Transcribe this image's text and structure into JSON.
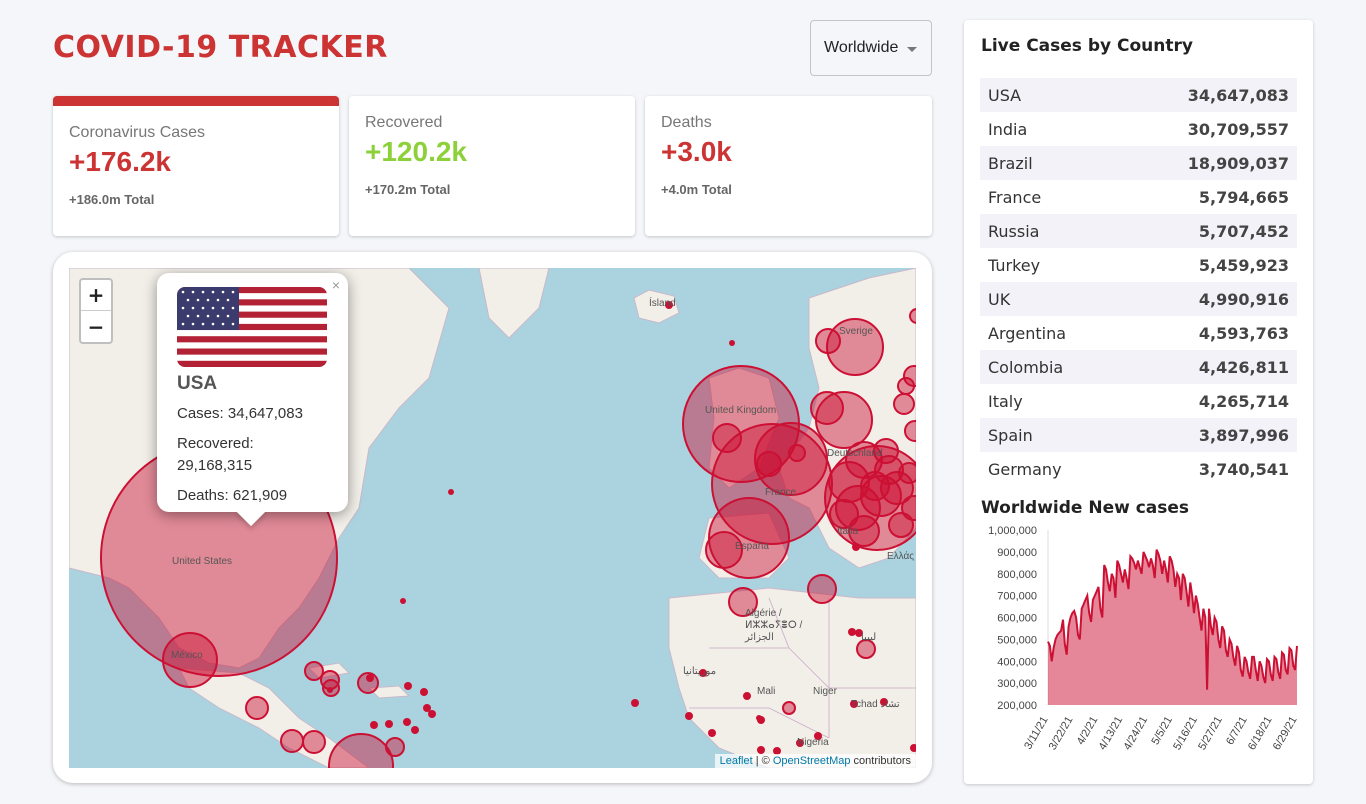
{
  "header": {
    "title": "COVID-19 TRACKER"
  },
  "country_select": {
    "selected": "Worldwide"
  },
  "info_cards": [
    {
      "label": "Coronavirus Cases",
      "value": "+176.2k",
      "total": "+186.0m Total",
      "selected": true
    },
    {
      "label": "Recovered",
      "value": "+120.2k",
      "total": "+170.2m Total",
      "selected": false
    },
    {
      "label": "Deaths",
      "value": "+3.0k",
      "total": "+4.0m Total",
      "selected": false
    }
  ],
  "map": {
    "zoom_in": "+",
    "zoom_out": "−",
    "attribution_leaflet": "Leaflet",
    "attribution_sep": " | © ",
    "attribution_osm": "OpenStreetMap",
    "attribution_rest": " contributors",
    "labels": {
      "iceland": "Ísland",
      "sweden": "Sverige",
      "uk": "United Kingdom",
      "france": "France",
      "spain": "España",
      "italy": "Italia",
      "germany": "Deutschland",
      "us": "United States",
      "mexico": "México",
      "algeria": "Algérie / ⵍⵣⵣⴰⵢⴻⵔ / الجزائر",
      "mauritania": "موريتانيا",
      "mali": "Mali",
      "niger": "Niger",
      "tchad": "Tchad تشاد",
      "nigeria": "Nigeria",
      "libya": "ليبيا",
      "greece": "Ελλάς"
    },
    "popup": {
      "country": "USA",
      "cases": "Cases: 34,647,083",
      "recovered": "Recovered: 29,168,315",
      "deaths": "Deaths: 621,909",
      "close": "×"
    },
    "circle_color": "#cc1034"
  },
  "live_cases": {
    "title": "Live Cases by Country",
    "rows": [
      {
        "country": "USA",
        "cases": "34,647,083"
      },
      {
        "country": "India",
        "cases": "30,709,557"
      },
      {
        "country": "Brazil",
        "cases": "18,909,037"
      },
      {
        "country": "France",
        "cases": "5,794,665"
      },
      {
        "country": "Russia",
        "cases": "5,707,452"
      },
      {
        "country": "Turkey",
        "cases": "5,459,923"
      },
      {
        "country": "UK",
        "cases": "4,990,916"
      },
      {
        "country": "Argentina",
        "cases": "4,593,763"
      },
      {
        "country": "Colombia",
        "cases": "4,426,811"
      },
      {
        "country": "Italy",
        "cases": "4,265,714"
      },
      {
        "country": "Spain",
        "cases": "3,897,996"
      },
      {
        "country": "Germany",
        "cases": "3,740,541"
      }
    ]
  },
  "chart_data": {
    "type": "area",
    "title": "Worldwide New cases",
    "ylim": [
      200000,
      1000000
    ],
    "yticks": [
      "1,000,000",
      "900,000",
      "800,000",
      "700,000",
      "600,000",
      "500,000",
      "400,000",
      "300,000",
      "200,000"
    ],
    "xticks": [
      "3/11/21",
      "3/22/21",
      "4/2/21",
      "4/13/21",
      "4/24/21",
      "5/5/21",
      "5/16/21",
      "5/27/21",
      "6/7/21",
      "6/18/21",
      "6/29/21"
    ],
    "values": [
      490000,
      470000,
      400000,
      460000,
      500000,
      520000,
      530000,
      540000,
      590000,
      480000,
      430000,
      560000,
      600000,
      620000,
      630000,
      600000,
      520000,
      500000,
      640000,
      660000,
      680000,
      700000,
      620000,
      580000,
      680000,
      700000,
      720000,
      740000,
      640000,
      600000,
      840000,
      820000,
      760000,
      720000,
      800000,
      780000,
      690000,
      860000,
      840000,
      800000,
      760000,
      820000,
      780000,
      730000,
      880000,
      870000,
      850000,
      820000,
      860000,
      830000,
      800000,
      900000,
      880000,
      860000,
      830000,
      870000,
      840000,
      780000,
      910000,
      890000,
      860000,
      800000,
      860000,
      820000,
      760000,
      880000,
      860000,
      820000,
      740000,
      800000,
      780000,
      680000,
      800000,
      780000,
      720000,
      650000,
      760000,
      700000,
      620000,
      700000,
      660000,
      600000,
      540000,
      640000,
      600000,
      270000,
      640000,
      560000,
      520000,
      600000,
      580000,
      500000,
      460000,
      560000,
      540000,
      450000,
      420000,
      500000,
      480000,
      420000,
      380000,
      470000,
      440000,
      360000,
      330000,
      420000,
      400000,
      350000,
      320000,
      420000,
      420000,
      360000,
      310000,
      400000,
      380000,
      330000,
      300000,
      410000,
      400000,
      340000,
      310000,
      420000,
      410000,
      350000,
      320000,
      440000,
      430000,
      360000,
      340000,
      460000,
      450000,
      380000,
      360000,
      470000
    ]
  }
}
